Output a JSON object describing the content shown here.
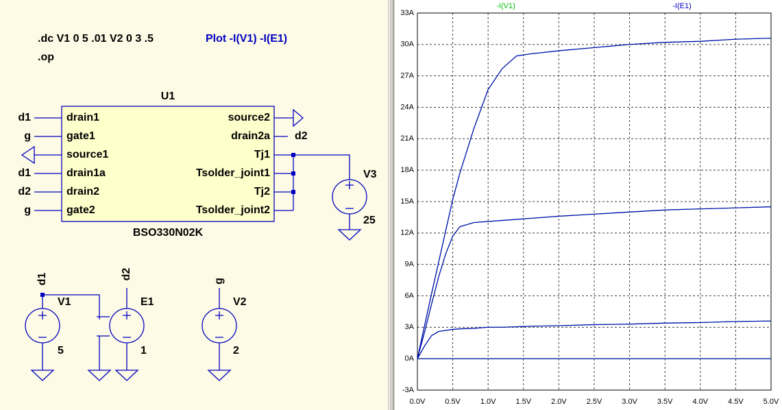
{
  "schematic": {
    "directives": [
      ".dc V1 0 5 .01 V2 0 3 .5",
      ".op"
    ],
    "plot_command": "Plot -I(V1) -I(E1)",
    "u1": {
      "ref": "U1",
      "part": "BSO330N02K",
      "left_pins": [
        "drain1",
        "gate1",
        "source1",
        "drain1a",
        "drain2",
        "gate2"
      ],
      "right_pins": [
        "source2",
        "drain2a",
        "Tj1",
        "Tsolder_joint1",
        "Tj2",
        "Tsolder_joint2"
      ]
    },
    "net_labels": [
      "d1",
      "g",
      "d1",
      "d2",
      "g",
      "d2",
      "d1",
      "d2",
      "g"
    ],
    "sources": [
      {
        "ref": "V3",
        "value": "25"
      },
      {
        "ref": "V1",
        "value": "5"
      },
      {
        "ref": "E1",
        "value": "1"
      },
      {
        "ref": "V2",
        "value": "2"
      }
    ]
  },
  "chart_data": {
    "type": "line",
    "x": [
      0,
      0.1,
      0.2,
      0.3,
      0.4,
      0.5,
      0.6,
      0.8,
      1.0,
      1.2,
      1.4,
      1.6,
      2.0,
      2.5,
      3.0,
      3.5,
      4.0,
      4.5,
      5.0
    ],
    "series": [
      {
        "name": "-I(V1)",
        "color": "#00c000",
        "values": [
          [
            0,
            3.1,
            6.2,
            9.2,
            12.2,
            15.2,
            17.7,
            22.0,
            25.7,
            27.7,
            28.9,
            29.1,
            29.4,
            29.7,
            30.0,
            30.2,
            30.3,
            30.5,
            30.6
          ],
          [
            0,
            2.5,
            5.2,
            7.8,
            10.0,
            11.7,
            12.6,
            13.0,
            13.1,
            13.2,
            13.3,
            13.4,
            13.6,
            13.8,
            14.0,
            14.2,
            14.3,
            14.4,
            14.5
          ],
          [
            0,
            1.2,
            2.2,
            2.6,
            2.7,
            2.8,
            2.85,
            2.9,
            3.0,
            3.0,
            3.05,
            3.1,
            3.15,
            3.25,
            3.3,
            3.4,
            3.45,
            3.55,
            3.6
          ],
          [
            0,
            0,
            0,
            0,
            0,
            0,
            0,
            0,
            0,
            0,
            0,
            0,
            0,
            0,
            0,
            0,
            0,
            0,
            0
          ]
        ]
      },
      {
        "name": "-I(E1)",
        "color": "#0000c0",
        "values": [
          [
            0,
            3.1,
            6.2,
            9.2,
            12.2,
            15.2,
            17.7,
            22.0,
            25.7,
            27.7,
            28.9,
            29.1,
            29.4,
            29.7,
            30.0,
            30.2,
            30.3,
            30.5,
            30.6
          ],
          [
            0,
            2.5,
            5.2,
            7.8,
            10.0,
            11.7,
            12.6,
            13.0,
            13.1,
            13.2,
            13.3,
            13.4,
            13.6,
            13.8,
            14.0,
            14.2,
            14.3,
            14.4,
            14.5
          ],
          [
            0,
            1.2,
            2.2,
            2.6,
            2.7,
            2.8,
            2.85,
            2.9,
            3.0,
            3.0,
            3.05,
            3.1,
            3.15,
            3.25,
            3.3,
            3.4,
            3.45,
            3.55,
            3.6
          ],
          [
            0,
            0,
            0,
            0,
            0,
            0,
            0,
            0,
            0,
            0,
            0,
            0,
            0,
            0,
            0,
            0,
            0,
            0,
            0
          ]
        ]
      }
    ],
    "xlim": [
      0,
      5
    ],
    "xticks": [
      {
        "value": 0,
        "label": "0.0V"
      },
      {
        "value": 0.5,
        "label": "0.5V"
      },
      {
        "value": 1,
        "label": "1.0V"
      },
      {
        "value": 1.5,
        "label": "1.5V"
      },
      {
        "value": 2,
        "label": "2.0V"
      },
      {
        "value": 2.5,
        "label": "2.5V"
      },
      {
        "value": 3,
        "label": "3.0V"
      },
      {
        "value": 3.5,
        "label": "3.5V"
      },
      {
        "value": 4,
        "label": "4.0V"
      },
      {
        "value": 4.5,
        "label": "4.5V"
      },
      {
        "value": 5,
        "label": "5.0V"
      }
    ],
    "ylim": [
      -3,
      33
    ],
    "yticks": [
      {
        "value": -3,
        "label": "-3A"
      },
      {
        "value": 0,
        "label": "0A"
      },
      {
        "value": 3,
        "label": "3A"
      },
      {
        "value": 6,
        "label": "6A"
      },
      {
        "value": 9,
        "label": "9A"
      },
      {
        "value": 12,
        "label": "12A"
      },
      {
        "value": 15,
        "label": "15A"
      },
      {
        "value": 18,
        "label": "18A"
      },
      {
        "value": 21,
        "label": "21A"
      },
      {
        "value": 24,
        "label": "24A"
      },
      {
        "value": 27,
        "label": "27A"
      },
      {
        "value": 30,
        "label": "30A"
      },
      {
        "value": 33,
        "label": "33A"
      }
    ],
    "grid": true
  }
}
